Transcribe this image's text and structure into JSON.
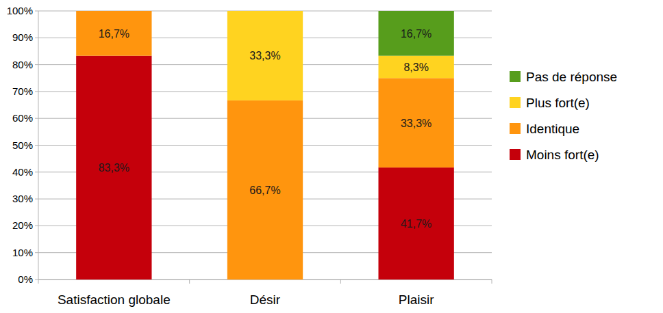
{
  "chart_data": {
    "type": "bar",
    "stacked": true,
    "data_labels": true,
    "grid": true,
    "legend": "right",
    "categories": [
      "Satisfaction globale",
      "Désir",
      "Plaisir"
    ],
    "series": [
      {
        "name": "Moins fort(e)",
        "color": "#c5000b",
        "values": [
          83.3,
          0,
          41.7
        ],
        "value_labels": [
          "83,3%",
          null,
          "41,7%"
        ]
      },
      {
        "name": "Identique",
        "color": "#ff950e",
        "values": [
          16.7,
          66.7,
          33.3
        ],
        "value_labels": [
          "16,7%",
          "66,7%",
          "33,3%"
        ]
      },
      {
        "name": "Plus fort(e)",
        "color": "#ffd320",
        "values": [
          0,
          33.3,
          8.3
        ],
        "value_labels": [
          null,
          "33,3%",
          "8,3%"
        ]
      },
      {
        "name": "Pas de réponse",
        "color": "#579d1c",
        "values": [
          0,
          0,
          16.7
        ],
        "value_labels": [
          null,
          null,
          "16,7%"
        ]
      }
    ],
    "ylim": [
      0,
      100
    ],
    "yticks": [
      {
        "value": 0,
        "label": "0%"
      },
      {
        "value": 10,
        "label": "10%"
      },
      {
        "value": 20,
        "label": "20%"
      },
      {
        "value": 30,
        "label": "30%"
      },
      {
        "value": 40,
        "label": "40%"
      },
      {
        "value": 50,
        "label": "50%"
      },
      {
        "value": 60,
        "label": "60%"
      },
      {
        "value": 70,
        "label": "70%"
      },
      {
        "value": 80,
        "label": "80%"
      },
      {
        "value": 90,
        "label": "90%"
      },
      {
        "value": 100,
        "label": "100%"
      }
    ]
  }
}
